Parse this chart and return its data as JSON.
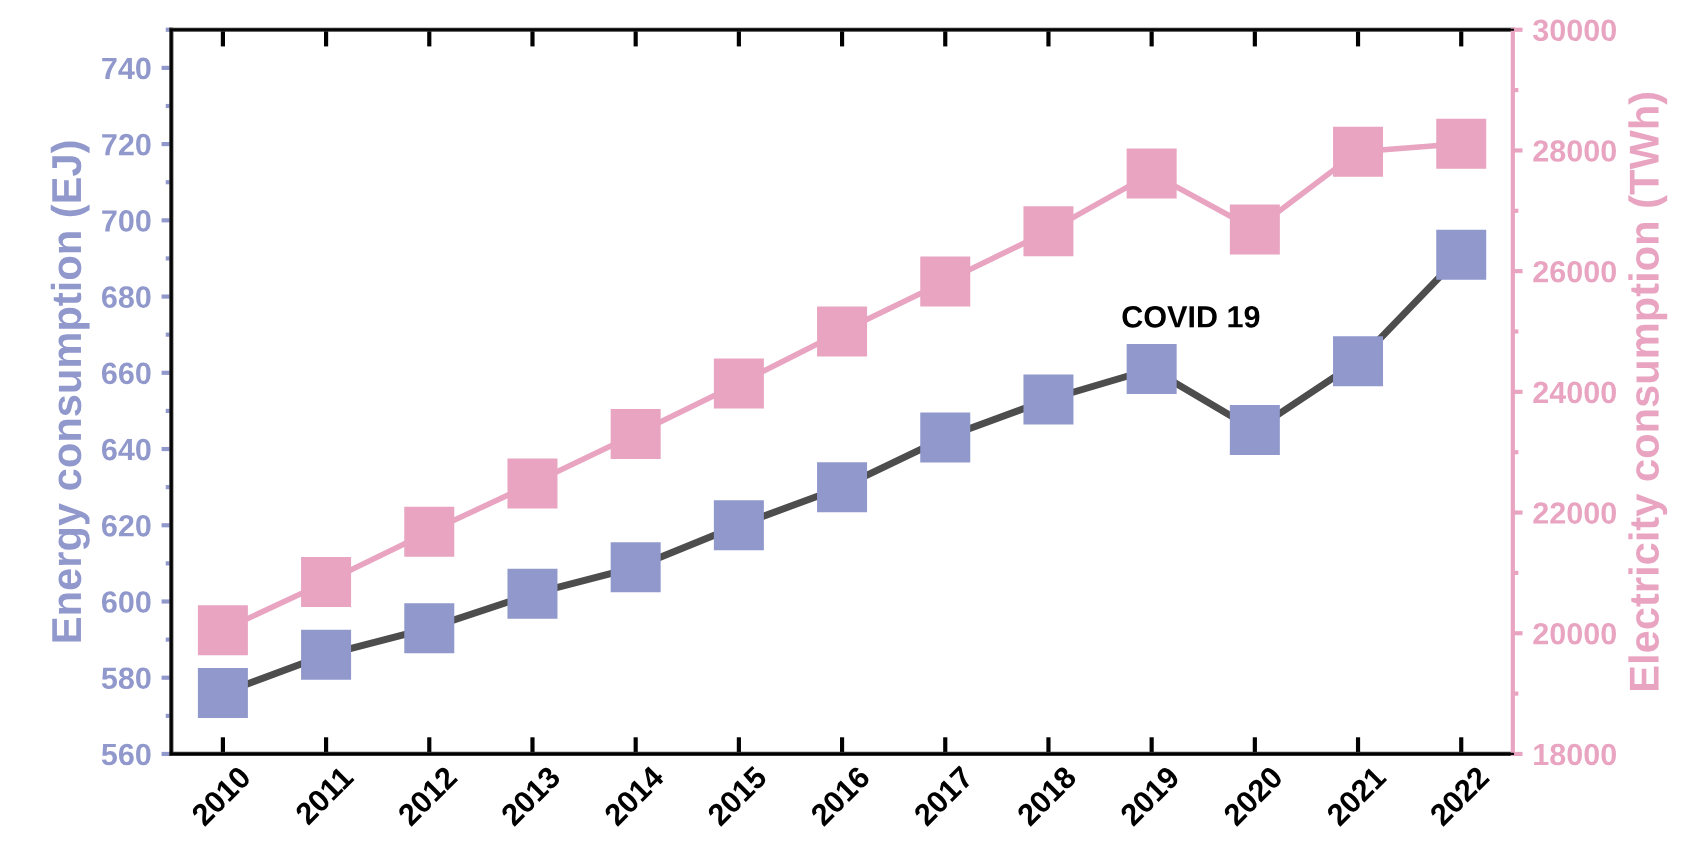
{
  "chart_data": {
    "type": "line",
    "categories": [
      "2010",
      "2011",
      "2012",
      "2013",
      "2014",
      "2015",
      "2016",
      "2017",
      "2018",
      "2019",
      "2020",
      "2021",
      "2022"
    ],
    "series": [
      {
        "color": "#9098cc",
        "values": [
          576,
          586,
          593,
          602,
          609,
          620,
          630,
          643,
          653,
          661,
          645,
          663,
          691
        ]
      },
      {
        "color": "#e8a4c0",
        "axis": "y2",
        "values": [
          20050,
          20850,
          21680,
          22480,
          23300,
          24140,
          25000,
          25830,
          26660,
          27620,
          26690,
          27980,
          28110
        ]
      }
    ],
    "ylabel": "Energy consumption (EJ)",
    "y2label": "Electricity consumption (TWh)",
    "ylim": [
      560,
      750
    ],
    "yticks": [
      560,
      580,
      600,
      620,
      640,
      660,
      680,
      700,
      720,
      740
    ],
    "y2lim": [
      18000,
      30000
    ],
    "y2ticks": [
      18000,
      20000,
      22000,
      24000,
      26000,
      28000,
      30000
    ],
    "annotations": [
      "COVID 19"
    ],
    "marker": "square",
    "line_style": "solid",
    "grid": false
  }
}
